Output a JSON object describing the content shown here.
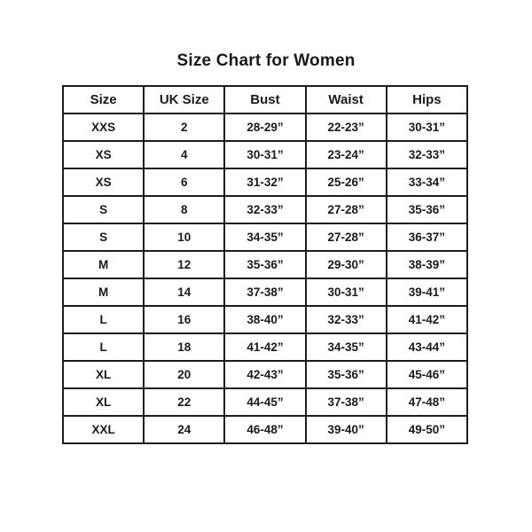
{
  "page": {
    "title": "Size Chart for Women"
  },
  "table": {
    "columns": [
      "Size",
      "UK Size",
      "Bust",
      "Waist",
      "Hips"
    ],
    "rows": [
      [
        "XXS",
        "2",
        "28-29”",
        "22-23”",
        "30-31”"
      ],
      [
        "XS",
        "4",
        "30-31”",
        "23-24”",
        "32-33”"
      ],
      [
        "XS",
        "6",
        "31-32”",
        "25-26”",
        "33-34”"
      ],
      [
        "S",
        "8",
        "32-33”",
        "27-28”",
        "35-36”"
      ],
      [
        "S",
        "10",
        "34-35”",
        "27-28”",
        "36-37”"
      ],
      [
        "M",
        "12",
        "35-36”",
        "29-30”",
        "38-39”"
      ],
      [
        "M",
        "14",
        "37-38”",
        "30-31”",
        "39-41”"
      ],
      [
        "L",
        "16",
        "38-40”",
        "32-33”",
        "41-42”"
      ],
      [
        "L",
        "18",
        "41-42”",
        "34-35”",
        "43-44”"
      ],
      [
        "XL",
        "20",
        "42-43”",
        "35-36”",
        "45-46”"
      ],
      [
        "XL",
        "22",
        "44-45”",
        "37-38”",
        "47-48”"
      ],
      [
        "XXL",
        "24",
        "46-48”",
        "39-40”",
        "49-50”"
      ]
    ]
  },
  "colors": {
    "text": "#1a1a1a",
    "border": "#1d1d1d",
    "background": "#ffffff"
  }
}
